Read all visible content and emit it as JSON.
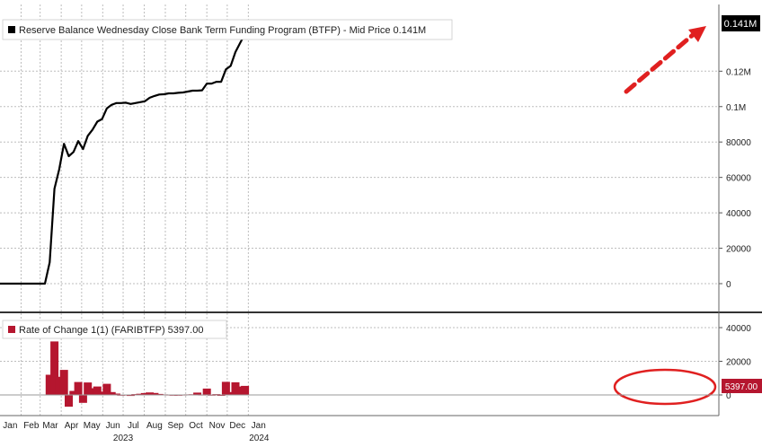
{
  "colors": {
    "background": "#ffffff",
    "line": "#000000",
    "bar": "#b5162f",
    "highlight_red": "#e02020",
    "grid": "#bdbdbd",
    "axis_text": "#222222",
    "current_label_top_bg": "#000000",
    "current_label_bottom_bg": "#b5162f"
  },
  "chart_data": [
    {
      "type": "line",
      "legend": "Reserve Balance Wednesday Close Bank Term Funding Program (BTFP) - Mid Price 0.141M",
      "current_value_label": "0.141M",
      "grid": true,
      "yaxis_position": "right",
      "ylim": [
        0,
        145000
      ],
      "yticks": [
        {
          "value": 0,
          "label": "0"
        },
        {
          "value": 20000,
          "label": "20000"
        },
        {
          "value": 40000,
          "label": "40000"
        },
        {
          "value": 60000,
          "label": "60000"
        },
        {
          "value": 80000,
          "label": "80000"
        },
        {
          "value": 100000,
          "label": "0.1M"
        },
        {
          "value": 120000,
          "label": "0.12M"
        }
      ],
      "annotation": "red dashed arrow pointing up-right at the end of the series",
      "series": [
        {
          "x": [
            "2023-01-04",
            "2023-01-11",
            "2023-01-18",
            "2023-01-25",
            "2023-02-01",
            "2023-02-08",
            "2023-02-15",
            "2023-02-22",
            "2023-03-01",
            "2023-03-08",
            "2023-03-15",
            "2023-03-22",
            "2023-03-29",
            "2023-04-05",
            "2023-04-12",
            "2023-04-19",
            "2023-04-26",
            "2023-05-03",
            "2023-05-10",
            "2023-05-17",
            "2023-05-24",
            "2023-05-31",
            "2023-06-07",
            "2023-06-14",
            "2023-06-21",
            "2023-06-28",
            "2023-07-05",
            "2023-07-12",
            "2023-07-19",
            "2023-07-26",
            "2023-08-02",
            "2023-08-09",
            "2023-08-16",
            "2023-08-23",
            "2023-08-30",
            "2023-09-06",
            "2023-09-13",
            "2023-09-20",
            "2023-09-27",
            "2023-10-04",
            "2023-10-11",
            "2023-10-18",
            "2023-10-25",
            "2023-11-01",
            "2023-11-08",
            "2023-11-15",
            "2023-11-22",
            "2023-11-29",
            "2023-12-06",
            "2023-12-13",
            "2023-12-20",
            "2023-12-27"
          ],
          "values": [
            0,
            0,
            0,
            0,
            0,
            0,
            0,
            0,
            0,
            0,
            12000,
            53600,
            64600,
            79000,
            72000,
            74400,
            80500,
            76000,
            83500,
            87000,
            91500,
            93000,
            99000,
            101000,
            102000,
            102000,
            102200,
            101500,
            102000,
            102500,
            103000,
            105000,
            106000,
            106800,
            107000,
            107500,
            107500,
            107800,
            108000,
            108500,
            109000,
            109000,
            109200,
            113000,
            113000,
            114000,
            114000,
            121000,
            123000,
            130800,
            136000,
            141000
          ]
        }
      ]
    },
    {
      "type": "bar",
      "legend": "Rate of Change 1(1)  (FARIBTFP)  5397.00",
      "current_value_label": "5397.00",
      "grid": true,
      "yaxis_position": "right",
      "ylim": [
        -10000,
        45000
      ],
      "yticks": [
        {
          "value": 0,
          "label": "0"
        },
        {
          "value": 20000,
          "label": "20000"
        },
        {
          "value": 40000,
          "label": "40000"
        }
      ],
      "annotation": "red oval around the December-January bars",
      "series": [
        {
          "x": [
            "2023-01-04",
            "2023-01-11",
            "2023-01-18",
            "2023-01-25",
            "2023-02-01",
            "2023-02-08",
            "2023-02-15",
            "2023-02-22",
            "2023-03-01",
            "2023-03-08",
            "2023-03-15",
            "2023-03-22",
            "2023-03-29",
            "2023-04-05",
            "2023-04-12",
            "2023-04-19",
            "2023-04-26",
            "2023-05-03",
            "2023-05-10",
            "2023-05-17",
            "2023-05-24",
            "2023-05-31",
            "2023-06-07",
            "2023-06-14",
            "2023-06-21",
            "2023-06-28",
            "2023-07-05",
            "2023-07-12",
            "2023-07-19",
            "2023-07-26",
            "2023-08-02",
            "2023-08-09",
            "2023-08-16",
            "2023-08-23",
            "2023-08-30",
            "2023-09-06",
            "2023-09-13",
            "2023-09-20",
            "2023-09-27",
            "2023-10-04",
            "2023-10-11",
            "2023-10-18",
            "2023-10-25",
            "2023-11-01",
            "2023-11-08",
            "2023-11-15",
            "2023-11-22",
            "2023-11-29",
            "2023-12-06",
            "2023-12-13",
            "2023-12-20",
            "2023-12-27"
          ],
          "values": [
            0,
            0,
            0,
            0,
            0,
            0,
            0,
            0,
            0,
            0,
            12000,
            31800,
            10800,
            14900,
            -7000,
            2400,
            7700,
            -4700,
            7400,
            4000,
            5000,
            2000,
            6600,
            1700,
            800,
            100,
            200,
            -600,
            500,
            700,
            1100,
            1500,
            1200,
            600,
            300,
            200,
            100,
            100,
            200,
            300,
            400,
            1400,
            200,
            3800,
            100,
            500,
            -200,
            7800,
            1700,
            7500,
            5000,
            5397
          ]
        }
      ]
    }
  ],
  "xaxis": {
    "months": [
      "Jan",
      "Feb",
      "Mar",
      "Apr",
      "May",
      "Jun",
      "Jul",
      "Aug",
      "Sep",
      "Oct",
      "Nov",
      "Dec",
      "Jan"
    ],
    "year_labels": [
      "2023",
      "2024"
    ]
  }
}
